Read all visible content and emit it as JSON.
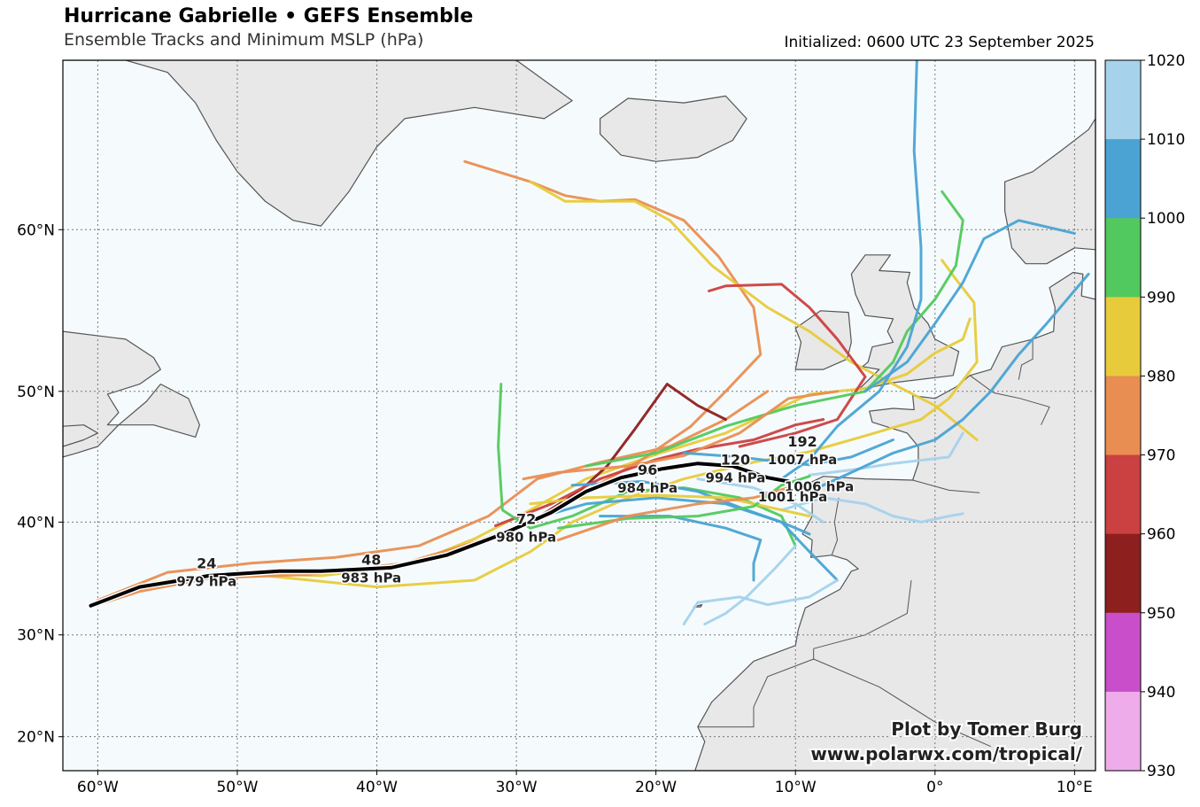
{
  "header": {
    "title": "Hurricane Gabrielle • GEFS Ensemble",
    "subtitle": "Ensemble Tracks and Minimum MSLP (hPa)",
    "initialized": "Initialized: 0600 UTC 23 September 2025"
  },
  "credit": {
    "line1": "Plot by Tomer Burg",
    "line2": "www.polarwx.com/tropical/"
  },
  "axes": {
    "lon_labels": [
      "60°W",
      "50°W",
      "40°W",
      "30°W",
      "20°W",
      "10°W",
      "0°",
      "10°E"
    ],
    "lat_labels": [
      "60°N",
      "50°N",
      "40°N",
      "30°N",
      "20°N"
    ],
    "lon_values": [
      -60,
      -50,
      -40,
      -30,
      -20,
      -10,
      0,
      10
    ],
    "lat_values": [
      60,
      50,
      40,
      30,
      20
    ],
    "lon_range": [
      -62.5,
      11.5
    ],
    "lat_range": [
      16.5,
      68
    ]
  },
  "colorbar": {
    "label_values": [
      "1020",
      "1010",
      "1000",
      "990",
      "980",
      "970",
      "960",
      "950",
      "940",
      "930"
    ],
    "bins": [
      {
        "low": 1010,
        "high": 1020,
        "color": "#a6d2ec"
      },
      {
        "low": 1000,
        "high": 1010,
        "color": "#4aa3d3"
      },
      {
        "low": 990,
        "high": 1000,
        "color": "#52c95e"
      },
      {
        "low": 980,
        "high": 990,
        "color": "#e7cb3b"
      },
      {
        "low": 970,
        "high": 980,
        "color": "#e98e52"
      },
      {
        "low": 960,
        "high": 970,
        "color": "#cb4040"
      },
      {
        "low": 950,
        "high": 960,
        "color": "#8e1f1f"
      },
      {
        "low": 940,
        "high": 950,
        "color": "#c94ec9"
      },
      {
        "low": 930,
        "high": 940,
        "color": "#eeacea"
      }
    ]
  },
  "colors": {
    "ocean": "#f5fbfd",
    "land": "#e8e8e8",
    "coast": "#555555",
    "mean_track": "#000000"
  },
  "mean_track": {
    "points": [
      [
        -60.5,
        32.7
      ],
      [
        -57,
        34.4
      ],
      [
        -52,
        35.4
      ],
      [
        -47,
        35.8
      ],
      [
        -44,
        35.8
      ],
      [
        -39,
        36.1
      ],
      [
        -35,
        37.2
      ],
      [
        -31,
        39
      ],
      [
        -27.5,
        40.8
      ],
      [
        -25,
        42.5
      ],
      [
        -22.5,
        43.6
      ],
      [
        -19.5,
        44.3
      ],
      [
        -17,
        44.7
      ],
      [
        -14.5,
        44.5
      ],
      [
        -12,
        43.6
      ],
      [
        -10.5,
        43.3
      ]
    ],
    "labels": [
      {
        "hour": "24",
        "pressure": "979 hPa",
        "lon": -52.2,
        "lat": 35.6
      },
      {
        "hour": "48",
        "pressure": "983 hPa",
        "lon": -40.4,
        "lat": 35.9
      },
      {
        "hour": "72",
        "pressure": "980 hPa",
        "lon": -29.3,
        "lat": 39.4
      },
      {
        "hour": "96",
        "pressure": "984 hPa",
        "lon": -20.6,
        "lat": 43.4
      },
      {
        "hour": "120",
        "pressure": "994 hPa",
        "lon": -14.3,
        "lat": 44.2
      },
      {
        "hour": "192",
        "pressure": "1007 hPa",
        "lon": -9.5,
        "lat": 45.6
      },
      {
        "hour": "",
        "pressure": "1006 hPa",
        "lon": -8.3,
        "lat": 43.5
      },
      {
        "hour": "",
        "pressure": "1001 hPa",
        "lon": -10.2,
        "lat": 42.7
      }
    ]
  },
  "ensemble_tracks": [
    {
      "color": "#e7cb3b",
      "points": [
        [
          -60,
          32.8
        ],
        [
          -56,
          34.8
        ],
        [
          -50,
          35.6
        ],
        [
          -44,
          35.4
        ],
        [
          -38,
          36.2
        ],
        [
          -33,
          38.6
        ],
        [
          -29,
          41
        ],
        [
          -25,
          43.5
        ],
        [
          -20,
          45.4
        ],
        [
          -15,
          47
        ],
        [
          -9,
          49.8
        ],
        [
          -5,
          50.2
        ],
        [
          -2,
          51.2
        ],
        [
          0,
          52.6
        ],
        [
          2,
          53.5
        ],
        [
          2.5,
          54.8
        ]
      ]
    },
    {
      "color": "#e7cb3b",
      "points": [
        [
          -60,
          32.9
        ],
        [
          -55,
          35
        ],
        [
          -48,
          35.4
        ],
        [
          -40,
          34.4
        ],
        [
          -33,
          35
        ],
        [
          -29,
          37.5
        ],
        [
          -26,
          40
        ],
        [
          -22,
          42
        ],
        [
          -18,
          43.5
        ],
        [
          -13,
          44.8
        ],
        [
          -9,
          45.6
        ],
        [
          -5,
          46.8
        ],
        [
          -1,
          48
        ],
        [
          1,
          49.5
        ],
        [
          3,
          52
        ],
        [
          2.8,
          55.8
        ],
        [
          1.5,
          57.2
        ],
        [
          0.5,
          58.3
        ]
      ]
    },
    {
      "color": "#e98e52",
      "points": [
        [
          -60,
          33.2
        ],
        [
          -55,
          35.7
        ],
        [
          -49,
          36.5
        ],
        [
          -43,
          37
        ],
        [
          -37,
          38
        ],
        [
          -32,
          40.5
        ],
        [
          -28.5,
          43.5
        ],
        [
          -24,
          44.8
        ],
        [
          -19,
          46
        ],
        [
          -15,
          48
        ],
        [
          -12,
          50
        ]
      ]
    },
    {
      "color": "#e98e52",
      "points": [
        [
          -33.7,
          63.5
        ],
        [
          -29,
          62.5
        ],
        [
          -26.5,
          61.8
        ],
        [
          -24,
          61.5
        ],
        [
          -21.5,
          61.6
        ],
        [
          -18,
          60.5
        ],
        [
          -15.5,
          58.5
        ],
        [
          -13,
          55.5
        ],
        [
          -12.5,
          52.5
        ],
        [
          -15,
          50
        ],
        [
          -17.5,
          47.5
        ],
        [
          -21,
          45
        ],
        [
          -25,
          42.5
        ],
        [
          -29,
          40
        ],
        [
          -33,
          38.3
        ],
        [
          -38,
          36.5
        ],
        [
          -45,
          35.5
        ],
        [
          -52,
          35.2
        ],
        [
          -57,
          34
        ],
        [
          -60,
          32.8
        ]
      ]
    },
    {
      "color": "#e7cb3b",
      "points": [
        [
          -29,
          62.5
        ],
        [
          -26.5,
          61.5
        ],
        [
          -24,
          61.5
        ],
        [
          -21.5,
          61.5
        ],
        [
          -19,
          60.5
        ],
        [
          -16,
          58
        ],
        [
          -12,
          55.5
        ],
        [
          -9,
          54
        ],
        [
          -6,
          52
        ],
        [
          -3,
          50.5
        ],
        [
          0,
          49
        ],
        [
          3,
          46.5
        ]
      ]
    },
    {
      "color": "#cb4040",
      "points": [
        [
          -16.2,
          56.5
        ],
        [
          -15,
          56.8
        ],
        [
          -11,
          56.9
        ],
        [
          -9,
          55.5
        ],
        [
          -7,
          53.5
        ],
        [
          -5,
          51
        ],
        [
          -7,
          48
        ],
        [
          -10,
          47
        ],
        [
          -14,
          46
        ]
      ]
    },
    {
      "color": "#8e1f1f",
      "points": [
        [
          -29,
          40
        ],
        [
          -25.5,
          42.5
        ],
        [
          -23.5,
          44.5
        ],
        [
          -21.5,
          47.3
        ],
        [
          -19.2,
          50.5
        ],
        [
          -17,
          49
        ],
        [
          -15,
          48
        ]
      ]
    },
    {
      "color": "#cb4040",
      "points": [
        [
          -31.5,
          39.7
        ],
        [
          -27.5,
          41.5
        ],
        [
          -24,
          43.5
        ],
        [
          -20,
          45
        ],
        [
          -17,
          45.8
        ],
        [
          -13,
          46.5
        ],
        [
          -10,
          47.6
        ],
        [
          -8,
          48
        ]
      ]
    },
    {
      "color": "#52c95e",
      "points": [
        [
          -31.1,
          50.5
        ],
        [
          -31.3,
          46
        ],
        [
          -31,
          41
        ],
        [
          -29,
          39.5
        ],
        [
          -26,
          40.5
        ],
        [
          -22,
          42.5
        ],
        [
          -18,
          42.8
        ],
        [
          -14,
          42
        ],
        [
          -11,
          40.5
        ],
        [
          -10,
          38
        ]
      ]
    },
    {
      "color": "#52c95e",
      "points": [
        [
          -25,
          44.5
        ],
        [
          -20,
          45.5
        ],
        [
          -15,
          47.5
        ],
        [
          -10,
          49
        ],
        [
          -5,
          50
        ],
        [
          -3,
          52
        ],
        [
          -2,
          54
        ],
        [
          0,
          56
        ],
        [
          1.5,
          58
        ],
        [
          2,
          60.5
        ],
        [
          0.5,
          62
        ]
      ]
    },
    {
      "color": "#4aa3d3",
      "points": [
        [
          -31.5,
          38.8
        ],
        [
          -29,
          40.2
        ],
        [
          -25,
          41.5
        ],
        [
          -20,
          42
        ],
        [
          -15,
          41.5
        ],
        [
          -11,
          40
        ],
        [
          -9,
          37.5
        ],
        [
          -7,
          35
        ]
      ]
    },
    {
      "color": "#4aa3d3",
      "points": [
        [
          -26,
          43
        ],
        [
          -21,
          43.3
        ],
        [
          -17,
          42.5
        ],
        [
          -13.5,
          41
        ],
        [
          -11,
          40
        ],
        [
          -9,
          39
        ]
      ]
    },
    {
      "color": "#4aa3d3",
      "points": [
        [
          -24,
          40.5
        ],
        [
          -19,
          40.5
        ],
        [
          -15,
          39.5
        ],
        [
          -12.5,
          38.5
        ],
        [
          -13,
          36.5
        ],
        [
          -13,
          35
        ]
      ]
    },
    {
      "color": "#a6d2ec",
      "points": [
        [
          -10,
          38
        ],
        [
          -11.5,
          36
        ],
        [
          -13.5,
          33.5
        ],
        [
          -15,
          32
        ],
        [
          -16.5,
          31
        ]
      ]
    },
    {
      "color": "#a6d2ec",
      "points": [
        [
          -7,
          35
        ],
        [
          -9,
          33.5
        ],
        [
          -12,
          32.8
        ],
        [
          -14,
          33.5
        ],
        [
          -17,
          33
        ],
        [
          -18,
          31
        ]
      ]
    },
    {
      "color": "#a6d2ec",
      "points": [
        [
          -11,
          41
        ],
        [
          -8,
          42
        ],
        [
          -5,
          41.5
        ],
        [
          -3,
          40.5
        ],
        [
          -1,
          40
        ],
        [
          1,
          40.5
        ],
        [
          2,
          40.7
        ]
      ]
    },
    {
      "color": "#a6d2ec",
      "points": [
        [
          -9,
          43.8
        ],
        [
          -6,
          44.2
        ],
        [
          -3,
          44.7
        ],
        [
          1,
          45.2
        ],
        [
          2,
          47
        ]
      ]
    },
    {
      "color": "#4aa3d3",
      "points": [
        [
          -9,
          42.5
        ],
        [
          -6,
          44
        ],
        [
          -3,
          45.5
        ],
        [
          0,
          46.5
        ],
        [
          2,
          48
        ],
        [
          4,
          50
        ],
        [
          6,
          52.5
        ],
        [
          8,
          54.5
        ],
        [
          11,
          57.5
        ]
      ]
    },
    {
      "color": "#4aa3d3",
      "points": [
        [
          -11,
          43.5
        ],
        [
          -9,
          45
        ],
        [
          -7,
          47.5
        ],
        [
          -4,
          50
        ],
        [
          -2,
          53
        ],
        [
          -1,
          56
        ],
        [
          -1,
          59
        ],
        [
          -1.5,
          64
        ],
        [
          -1.3,
          68
        ]
      ]
    },
    {
      "color": "#4aa3d3",
      "points": [
        [
          -5,
          50
        ],
        [
          -2,
          52
        ],
        [
          0,
          54.5
        ],
        [
          2,
          57
        ],
        [
          3.5,
          59.5
        ],
        [
          6,
          60.5
        ],
        [
          10,
          59.8
        ]
      ]
    },
    {
      "color": "#e98e52",
      "points": [
        [
          -29.5,
          43.5
        ],
        [
          -27,
          44
        ],
        [
          -22,
          44.5
        ],
        [
          -18,
          45.3
        ],
        [
          -14,
          47
        ],
        [
          -10.5,
          49.5
        ],
        [
          -7,
          50
        ]
      ]
    },
    {
      "color": "#e7cb3b",
      "points": [
        [
          -29,
          41.5
        ],
        [
          -25,
          42
        ],
        [
          -20,
          42.2
        ],
        [
          -15,
          42
        ],
        [
          -11,
          41
        ],
        [
          -9,
          40.5
        ]
      ]
    },
    {
      "color": "#52c95e",
      "points": [
        [
          -27,
          39.5
        ],
        [
          -22,
          40.3
        ],
        [
          -17,
          40.5
        ],
        [
          -13,
          41.3
        ],
        [
          -11,
          43
        ],
        [
          -9,
          43.7
        ]
      ]
    },
    {
      "color": "#e98e52",
      "points": [
        [
          -27,
          38.5
        ],
        [
          -22,
          40.5
        ],
        [
          -17,
          41.5
        ],
        [
          -13,
          42
        ],
        [
          -10.5,
          42.8
        ]
      ]
    },
    {
      "color": "#a6d2ec",
      "points": [
        [
          -17,
          43.5
        ],
        [
          -13,
          42.8
        ],
        [
          -10,
          41.5
        ],
        [
          -8,
          40
        ]
      ]
    },
    {
      "color": "#4aa3d3",
      "points": [
        [
          -18,
          45.5
        ],
        [
          -14,
          45.2
        ],
        [
          -11,
          44.8
        ],
        [
          -9,
          44.6
        ],
        [
          -6,
          45.2
        ],
        [
          -3,
          46.5
        ]
      ]
    }
  ]
}
